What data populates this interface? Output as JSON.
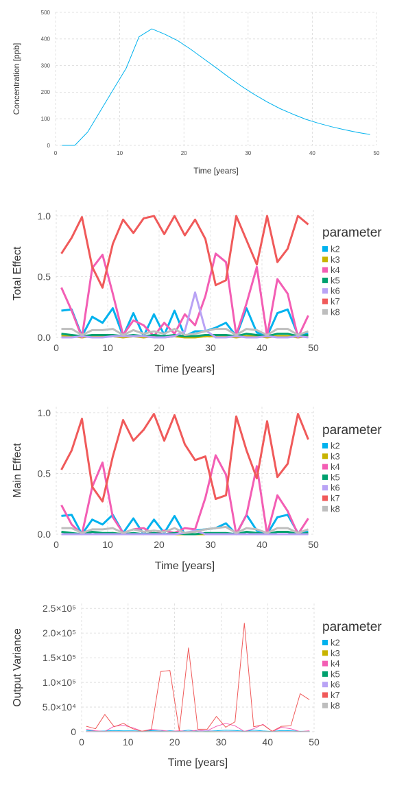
{
  "chart_data": [
    {
      "type": "line",
      "xlabel": "Time [years]",
      "ylabel": "Concentration [ppb]",
      "xlim": [
        0,
        50
      ],
      "ylim": [
        0,
        500
      ],
      "xticks": [
        "0",
        "10",
        "20",
        "30",
        "40",
        "50"
      ],
      "yticks": [
        "0",
        "100",
        "200",
        "300",
        "400",
        "500"
      ],
      "grid": true,
      "colors": {
        "line": "#00b2ee"
      },
      "x": [
        1,
        3,
        5,
        7,
        9,
        11,
        13,
        15,
        17,
        19,
        21,
        23,
        25,
        27,
        29,
        31,
        33,
        35,
        37,
        39,
        41,
        43,
        45,
        47,
        49
      ],
      "values": [
        0,
        0,
        50,
        130,
        210,
        290,
        408,
        438,
        418,
        394,
        362,
        327,
        292,
        256,
        222,
        191,
        163,
        138,
        117,
        98,
        83,
        70,
        59,
        49,
        41
      ]
    },
    {
      "type": "line",
      "xlabel": "Time [years]",
      "ylabel": "Total Effect",
      "legend_title": "parameter",
      "legend_position": "right",
      "xlim": [
        0,
        50
      ],
      "ylim": [
        0,
        1.05
      ],
      "xticks": [
        "0",
        "10",
        "20",
        "30",
        "40",
        "50"
      ],
      "yticks": [
        "0.0",
        "0.5",
        "1.0"
      ],
      "grid": true,
      "x": [
        1,
        3,
        5,
        7,
        9,
        11,
        13,
        15,
        17,
        19,
        21,
        23,
        25,
        27,
        29,
        31,
        33,
        35,
        37,
        39,
        41,
        43,
        45,
        47,
        49
      ],
      "series": [
        {
          "name": "k2",
          "color": "#00b2ee",
          "values": [
            0.22,
            0.23,
            0.01,
            0.17,
            0.12,
            0.24,
            0.01,
            0.2,
            0.01,
            0.19,
            0.02,
            0.22,
            0.01,
            0.05,
            0.05,
            0.08,
            0.12,
            0.01,
            0.24,
            0.04,
            0.01,
            0.2,
            0.23,
            0.02,
            0.03
          ]
        },
        {
          "name": "k3",
          "color": "#c8b400",
          "values": [
            0.01,
            0.01,
            0.0,
            0.01,
            0.01,
            0.01,
            0.0,
            0.01,
            0.0,
            0.01,
            0.0,
            0.01,
            0.0,
            0.0,
            0.01,
            0.01,
            0.01,
            0.0,
            0.01,
            0.01,
            0.0,
            0.01,
            0.01,
            0.0,
            0.01
          ]
        },
        {
          "name": "k4",
          "color": "#f35eb4",
          "values": [
            0.41,
            0.22,
            0.0,
            0.57,
            0.68,
            0.36,
            0.02,
            0.14,
            0.1,
            0.01,
            0.12,
            0.03,
            0.19,
            0.1,
            0.34,
            0.69,
            0.62,
            0.02,
            0.28,
            0.58,
            0.01,
            0.48,
            0.36,
            0.0,
            0.18
          ]
        },
        {
          "name": "k5",
          "color": "#00a06e",
          "values": [
            0.03,
            0.02,
            0.01,
            0.02,
            0.02,
            0.02,
            0.01,
            0.02,
            0.01,
            0.02,
            0.01,
            0.02,
            0.01,
            0.01,
            0.02,
            0.02,
            0.02,
            0.01,
            0.03,
            0.02,
            0.01,
            0.03,
            0.03,
            0.01,
            0.02
          ]
        },
        {
          "name": "k6",
          "color": "#b9a3f5",
          "values": [
            0.0,
            0.0,
            0.01,
            0.0,
            0.0,
            0.01,
            0.01,
            0.01,
            0.01,
            0.0,
            0.0,
            0.01,
            0.05,
            0.37,
            0.06,
            0.0,
            0.0,
            0.01,
            0.0,
            0.0,
            0.01,
            0.0,
            0.0,
            0.01,
            0.0
          ]
        },
        {
          "name": "k7",
          "color": "#f05a5a",
          "values": [
            0.69,
            0.82,
            0.99,
            0.58,
            0.41,
            0.77,
            0.97,
            0.86,
            0.98,
            1.0,
            0.85,
            1.0,
            0.84,
            0.97,
            0.81,
            0.43,
            0.47,
            1.0,
            0.8,
            0.6,
            1.0,
            0.62,
            0.73,
            1.0,
            0.93
          ]
        },
        {
          "name": "k8",
          "color": "#bebebe",
          "values": [
            0.07,
            0.07,
            0.02,
            0.06,
            0.06,
            0.07,
            0.02,
            0.06,
            0.03,
            0.05,
            0.03,
            0.07,
            0.02,
            0.03,
            0.05,
            0.07,
            0.07,
            0.02,
            0.07,
            0.06,
            0.02,
            0.07,
            0.07,
            0.02,
            0.05
          ]
        }
      ]
    },
    {
      "type": "line",
      "xlabel": "Time [years]",
      "ylabel": "Main Effect",
      "legend_title": "parameter",
      "legend_position": "right",
      "xlim": [
        0,
        50
      ],
      "ylim": [
        0,
        1.05
      ],
      "xticks": [
        "0",
        "10",
        "20",
        "30",
        "40",
        "50"
      ],
      "yticks": [
        "0.0",
        "0.5",
        "1.0"
      ],
      "grid": true,
      "x": [
        1,
        3,
        5,
        7,
        9,
        11,
        13,
        15,
        17,
        19,
        21,
        23,
        25,
        27,
        29,
        31,
        33,
        35,
        37,
        39,
        41,
        43,
        45,
        47,
        49
      ],
      "series": [
        {
          "name": "k2",
          "color": "#00b2ee",
          "values": [
            0.15,
            0.16,
            0.0,
            0.12,
            0.08,
            0.16,
            0.01,
            0.13,
            0.0,
            0.12,
            0.01,
            0.15,
            0.0,
            0.03,
            0.04,
            0.05,
            0.09,
            0.0,
            0.16,
            0.03,
            0.0,
            0.14,
            0.16,
            0.01,
            0.02
          ]
        },
        {
          "name": "k3",
          "color": "#c8b400",
          "values": [
            0.0,
            0.0,
            0.0,
            0.0,
            0.0,
            0.01,
            0.0,
            0.0,
            0.0,
            0.0,
            0.0,
            0.0,
            0.0,
            0.0,
            0.0,
            0.0,
            0.0,
            0.0,
            0.0,
            0.0,
            0.0,
            0.0,
            0.0,
            0.0,
            0.0
          ]
        },
        {
          "name": "k4",
          "color": "#f35eb4",
          "values": [
            0.24,
            0.08,
            0.0,
            0.39,
            0.59,
            0.14,
            0.01,
            0.04,
            0.05,
            0.0,
            0.03,
            0.01,
            0.05,
            0.04,
            0.3,
            0.65,
            0.49,
            0.0,
            0.16,
            0.56,
            0.0,
            0.32,
            0.19,
            0.0,
            0.13
          ]
        },
        {
          "name": "k5",
          "color": "#00a06e",
          "values": [
            0.02,
            0.01,
            0.0,
            0.02,
            0.01,
            0.01,
            0.0,
            0.01,
            0.0,
            0.01,
            0.0,
            0.01,
            0.0,
            0.0,
            0.01,
            0.01,
            0.01,
            0.0,
            0.02,
            0.01,
            0.0,
            0.02,
            0.02,
            0.0,
            0.01
          ]
        },
        {
          "name": "k6",
          "color": "#b9a3f5",
          "values": [
            0.0,
            0.0,
            0.0,
            0.0,
            0.0,
            0.0,
            0.0,
            0.0,
            0.0,
            0.0,
            0.0,
            0.0,
            0.01,
            0.03,
            0.0,
            0.0,
            0.0,
            0.0,
            0.0,
            0.0,
            0.0,
            0.0,
            0.0,
            0.0,
            0.0
          ]
        },
        {
          "name": "k7",
          "color": "#f05a5a",
          "values": [
            0.53,
            0.69,
            0.95,
            0.39,
            0.27,
            0.64,
            0.94,
            0.77,
            0.86,
            0.99,
            0.77,
            0.98,
            0.74,
            0.61,
            0.64,
            0.29,
            0.32,
            0.97,
            0.69,
            0.46,
            0.93,
            0.47,
            0.58,
            0.99,
            0.78
          ]
        },
        {
          "name": "k8",
          "color": "#bebebe",
          "values": [
            0.05,
            0.05,
            0.01,
            0.04,
            0.04,
            0.05,
            0.01,
            0.04,
            0.02,
            0.03,
            0.02,
            0.05,
            0.01,
            0.02,
            0.04,
            0.05,
            0.06,
            0.01,
            0.05,
            0.04,
            0.01,
            0.05,
            0.05,
            0.01,
            0.04
          ]
        }
      ]
    },
    {
      "type": "line",
      "xlabel": "Time [years]",
      "ylabel": "Output Variance",
      "legend_title": "parameter",
      "legend_position": "right",
      "xlim": [
        0,
        50
      ],
      "ylim": [
        0,
        260000
      ],
      "xticks": [
        "0",
        "10",
        "20",
        "30",
        "40",
        "50"
      ],
      "yticks": [
        "0",
        "5.0×10⁴",
        "1.0×10⁵",
        "1.5×10⁵",
        "2.0×10⁵",
        "2.5×10⁵"
      ],
      "ytick_values": [
        0,
        50000,
        100000,
        150000,
        200000,
        250000
      ],
      "grid": true,
      "x": [
        1,
        3,
        5,
        7,
        9,
        11,
        13,
        15,
        17,
        19,
        21,
        23,
        25,
        27,
        29,
        31,
        33,
        35,
        37,
        39,
        41,
        43,
        45,
        47,
        49
      ],
      "series": [
        {
          "name": "k2",
          "color": "#00b2ee",
          "values": [
            2500,
            1200,
            1500,
            2500,
            1800,
            2000,
            800,
            2200,
            1200,
            2000,
            800,
            3000,
            900,
            1500,
            2000,
            3000,
            2500,
            1000,
            3000,
            1500,
            500,
            2500,
            2000,
            800,
            1000
          ]
        },
        {
          "name": "k3",
          "color": "#c8b400",
          "values": [
            200,
            100,
            100,
            200,
            100,
            200,
            100,
            200,
            100,
            200,
            100,
            200,
            100,
            100,
            200,
            200,
            200,
            100,
            200,
            100,
            100,
            200,
            200,
            100,
            100
          ]
        },
        {
          "name": "k4",
          "color": "#f35eb4",
          "values": [
            5000,
            2000,
            500,
            11000,
            13000,
            8000,
            800,
            5000,
            3000,
            500,
            2000,
            500,
            3000,
            2000,
            11000,
            17000,
            12000,
            500,
            6000,
            15000,
            200,
            9000,
            6000,
            100,
            2000
          ]
        },
        {
          "name": "k5",
          "color": "#00a06e",
          "values": [
            400,
            200,
            100,
            300,
            300,
            300,
            100,
            300,
            100,
            300,
            100,
            300,
            100,
            100,
            300,
            300,
            300,
            100,
            400,
            200,
            100,
            300,
            300,
            100,
            200
          ]
        },
        {
          "name": "k6",
          "color": "#b9a3f5",
          "values": [
            0,
            0,
            0,
            0,
            0,
            0,
            0,
            0,
            0,
            0,
            0,
            0,
            300,
            2500,
            400,
            0,
            0,
            0,
            0,
            0,
            0,
            0,
            0,
            0,
            0
          ]
        },
        {
          "name": "k7",
          "color": "#f05a5a",
          "values": [
            11000,
            6000,
            35000,
            10000,
            17000,
            6000,
            1000,
            4000,
            122000,
            124000,
            2000,
            170000,
            5000,
            5000,
            31000,
            9000,
            20000,
            220000,
            10000,
            14000,
            1000,
            11000,
            12000,
            77000,
            65000
          ]
        },
        {
          "name": "k8",
          "color": "#bebebe",
          "values": [
            800,
            500,
            300,
            800,
            600,
            800,
            200,
            700,
            300,
            600,
            300,
            800,
            200,
            300,
            600,
            800,
            800,
            200,
            800,
            600,
            200,
            800,
            700,
            200,
            500
          ]
        }
      ]
    }
  ]
}
